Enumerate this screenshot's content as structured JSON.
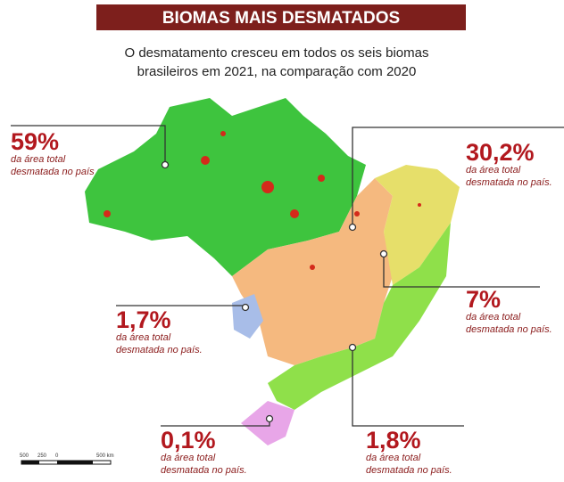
{
  "header": {
    "title": "BIOMAS MAIS DESMATADOS",
    "subtitle": [
      "O desmatamento cresceu em todos os seis biomas",
      "brasileiros em 2021, na comparação com 2020"
    ]
  },
  "callouts": [
    {
      "value": "59%",
      "text": [
        "da área total",
        "desmatada no país"
      ]
    },
    {
      "value": "30,2%",
      "text": [
        "da área total",
        "desmatada no país."
      ]
    },
    {
      "value": "7%",
      "text": [
        "da área total",
        "desmatada no país."
      ]
    },
    {
      "value": "1,7%",
      "text": [
        "da área total",
        "desmatada no país."
      ]
    },
    {
      "value": "0,1%",
      "text": [
        "da área total",
        "desmatada no país."
      ]
    },
    {
      "value": "1,8%",
      "text": [
        "da área total",
        "desmatada no país."
      ]
    }
  ],
  "scale": [
    "500",
    "250",
    "0",
    "500 km"
  ]
}
